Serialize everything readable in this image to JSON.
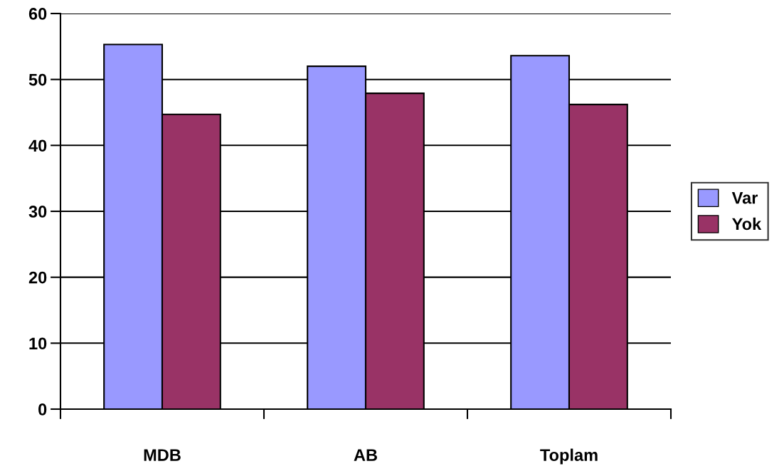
{
  "chart_data": {
    "type": "bar",
    "categories": [
      "MDB",
      "AB",
      "Toplam"
    ],
    "series": [
      {
        "name": "Var",
        "color": "#9999ff",
        "values": [
          55.3,
          52.0,
          53.6
        ]
      },
      {
        "name": "Yok",
        "color": "#993366",
        "values": [
          44.7,
          47.9,
          46.2
        ]
      }
    ],
    "ylim": [
      0,
      60
    ],
    "yticks": [
      0,
      10,
      20,
      30,
      40,
      50,
      60
    ],
    "grid": "y",
    "legend": "right"
  }
}
